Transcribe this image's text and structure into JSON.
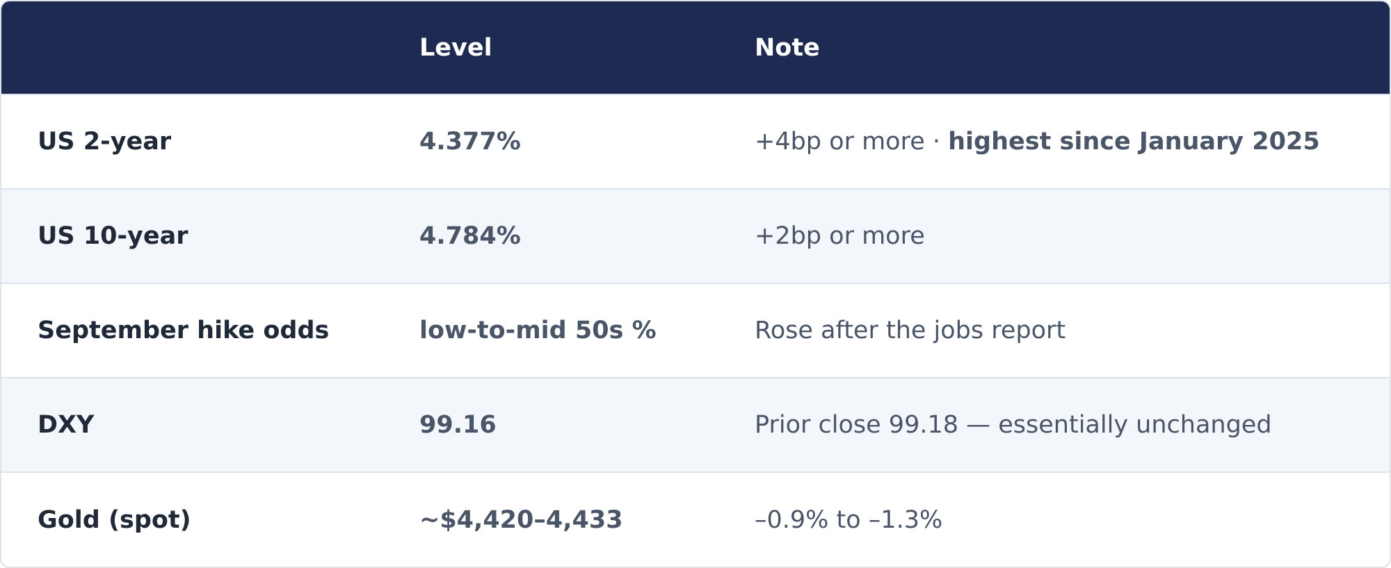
{
  "table": {
    "header": [
      "Level",
      "Note"
    ],
    "rows": [
      {
        "label": "US 2-year",
        "level": "4.377%",
        "note": "+4bp or more ·",
        "note_bold": "highest since January 2025"
      },
      {
        "label": "US 10-year",
        "level": "4.784%",
        "note": "+2bp or more"
      },
      {
        "label": "September hike odds",
        "level": "low-to-mid 50s %",
        "note": "Rose after the jobs report"
      },
      {
        "label": "DXY",
        "level": "99.16",
        "note": "Prior close 99.18 — essentially unchanged"
      },
      {
        "label": "Gold (spot)",
        "level": "~$4,420–4,433",
        "note": "–0.9% to –1.3%"
      }
    ]
  }
}
